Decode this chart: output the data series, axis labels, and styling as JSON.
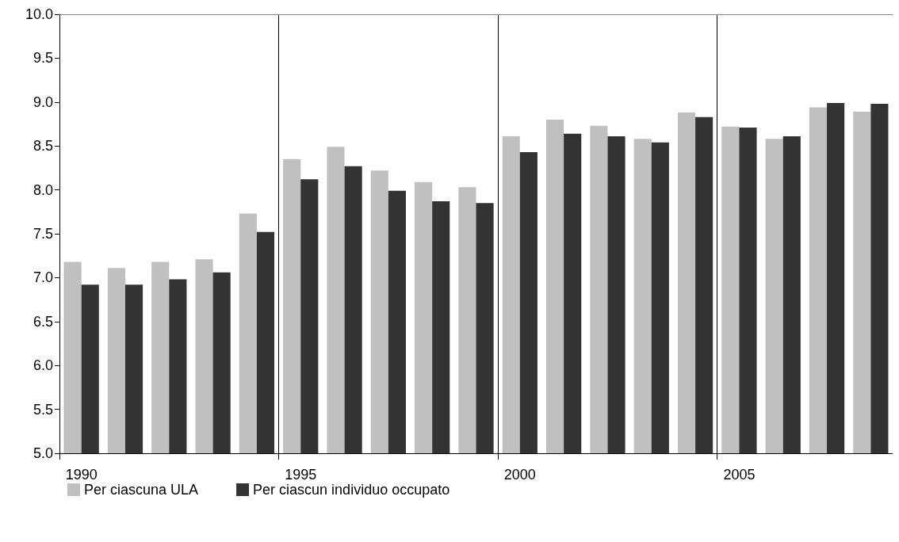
{
  "chart_data": {
    "type": "bar",
    "categories": [
      "1990",
      null,
      null,
      null,
      null,
      "1995",
      null,
      null,
      null,
      null,
      "2000",
      null,
      null,
      null,
      null,
      "2005",
      null,
      null,
      null
    ],
    "series": [
      {
        "name": "Per ciascuna ULA",
        "color": "#c0c0c0",
        "values": [
          7.18,
          7.11,
          7.18,
          7.21,
          7.73,
          8.35,
          8.49,
          8.22,
          8.09,
          8.03,
          8.61,
          8.8,
          8.73,
          8.58,
          8.88,
          8.72,
          8.58,
          8.94,
          8.89
        ]
      },
      {
        "name": "Per ciascun individuo occupato",
        "color": "#333333",
        "values": [
          6.92,
          6.92,
          6.98,
          7.06,
          7.52,
          8.12,
          8.27,
          7.99,
          7.87,
          7.85,
          8.43,
          8.64,
          8.61,
          8.54,
          8.83,
          8.71,
          8.61,
          8.99,
          8.98
        ]
      }
    ],
    "ylim": [
      5,
      10
    ],
    "yticks": [
      {
        "value": 5,
        "label": "5.0"
      },
      5.5,
      {
        "value": 6,
        "label": "6.0"
      },
      6.5,
      {
        "value": 7,
        "label": "7.0"
      },
      7.5,
      {
        "value": 8,
        "label": "8.0"
      },
      8.5,
      {
        "value": 9,
        "label": "9.0"
      },
      9.5,
      {
        "value": 10,
        "label": "10.0"
      }
    ],
    "grid": "x",
    "legend": "bottom left"
  }
}
